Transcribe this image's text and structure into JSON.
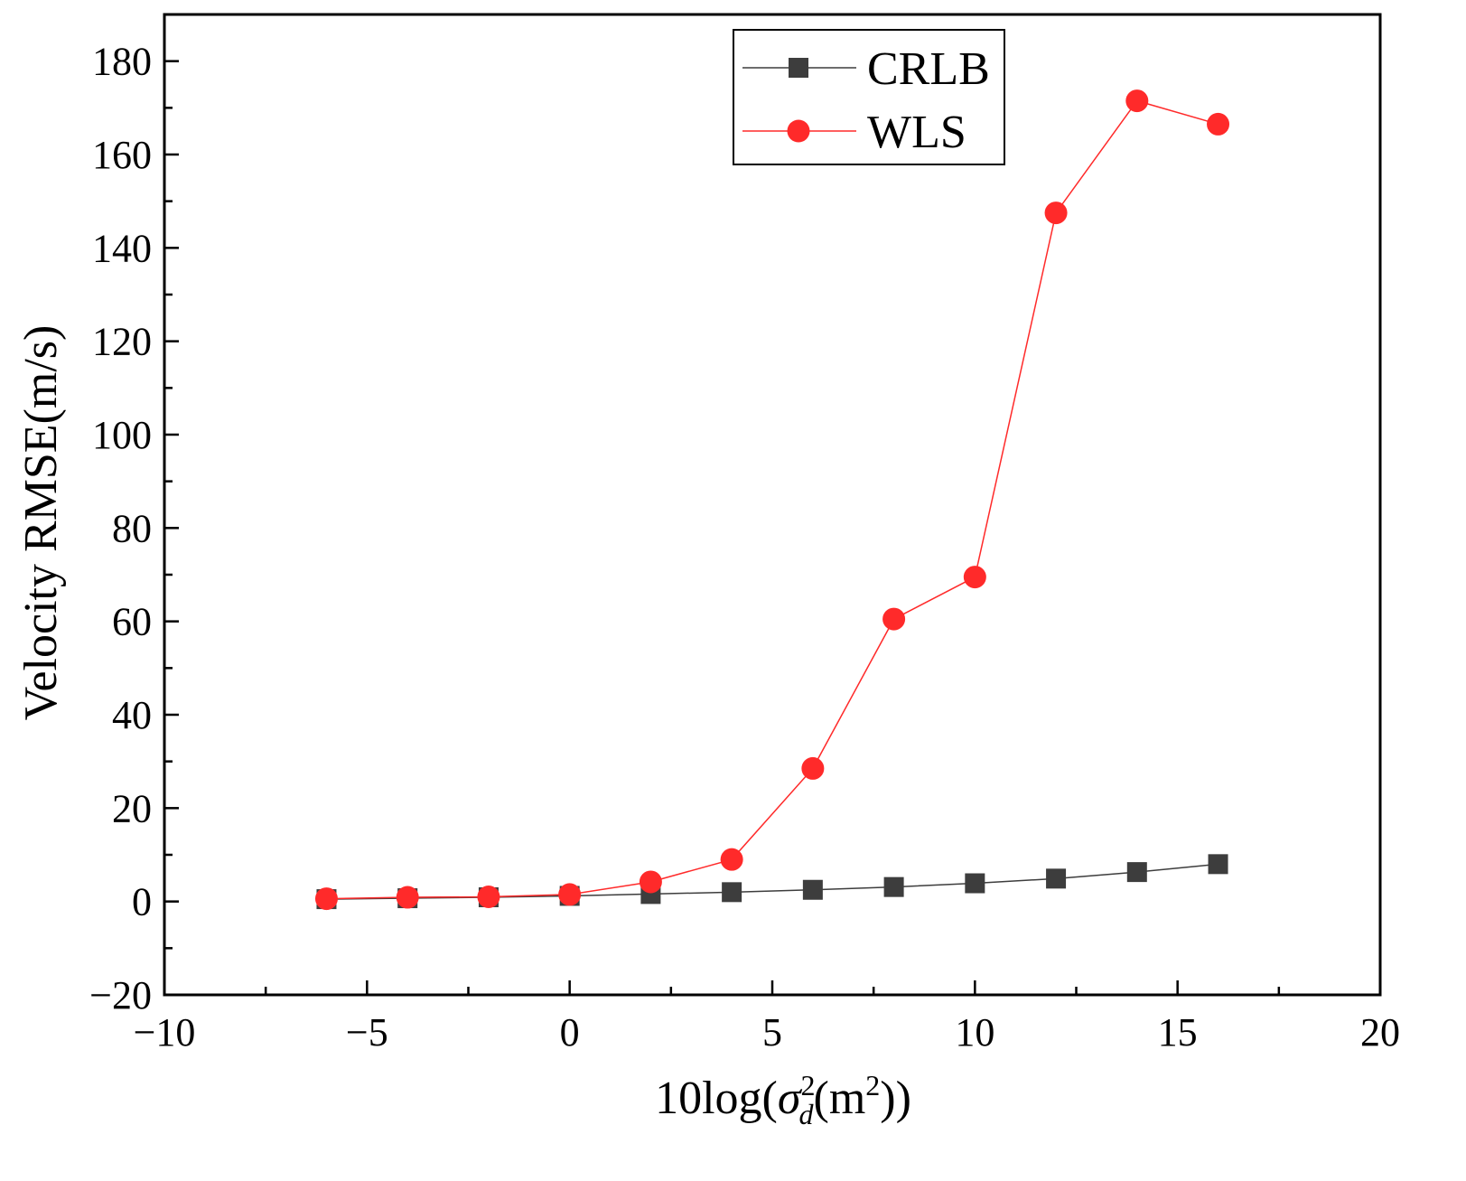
{
  "chart_data": {
    "type": "line",
    "title": "",
    "xlabel": {
      "prefix": "10log(",
      "symbol": "σ",
      "superscript": "2",
      "subscript": "d",
      "unit_open": "(m",
      "unit_sup": "2",
      "suffix": "))"
    },
    "ylabel": "Velocity RMSE(m/s)",
    "xlim": [
      -10,
      20
    ],
    "ylim": [
      -20,
      190
    ],
    "xticks": [
      -10,
      -5,
      0,
      5,
      10,
      15,
      20
    ],
    "xtick_labels": [
      "−10",
      "−5",
      "0",
      "5",
      "10",
      "15",
      "20"
    ],
    "yticks": [
      -20,
      0,
      20,
      40,
      60,
      80,
      100,
      120,
      140,
      160,
      180
    ],
    "ytick_labels": [
      "−20",
      "0",
      "20",
      "40",
      "60",
      "80",
      "100",
      "120",
      "140",
      "160",
      "180"
    ],
    "x": [
      -6,
      -4,
      -2,
      0,
      2,
      4,
      6,
      8,
      10,
      12,
      14,
      16
    ],
    "series": [
      {
        "name": "CRLB",
        "marker": "square",
        "color": "#3d3d3d",
        "values": [
          0.5,
          0.7,
          0.9,
          1.2,
          1.6,
          2.0,
          2.5,
          3.1,
          3.9,
          4.9,
          6.3,
          8.0
        ]
      },
      {
        "name": "WLS",
        "marker": "circle",
        "color": "#ff2a2a",
        "values": [
          0.6,
          0.9,
          1.0,
          1.5,
          4.2,
          9.0,
          28.5,
          60.5,
          69.5,
          147.5,
          171.5,
          166.5
        ]
      }
    ],
    "legend_position": "top-center",
    "grid": false
  }
}
